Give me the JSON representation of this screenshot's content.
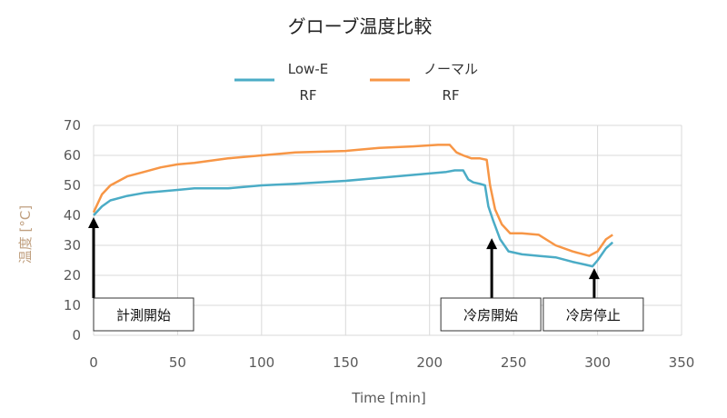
{
  "chart_data": {
    "type": "line",
    "title": "グローブ温度比較",
    "xlabel": "Time [min]",
    "ylabel": "温度 [°C]",
    "xlim": [
      0,
      350
    ],
    "ylim": [
      0,
      70
    ],
    "x_ticks": [
      0,
      50,
      100,
      150,
      200,
      250,
      300,
      350
    ],
    "y_ticks": [
      0,
      10,
      20,
      30,
      40,
      50,
      60,
      70
    ],
    "grid": true,
    "legend_position": "top",
    "series": [
      {
        "name_lines": [
          "Low-E",
          "RF"
        ],
        "color": "#4bacc6",
        "points": [
          [
            0,
            40
          ],
          [
            5,
            43
          ],
          [
            10,
            45
          ],
          [
            20,
            46.5
          ],
          [
            30,
            47.5
          ],
          [
            40,
            48
          ],
          [
            50,
            48.5
          ],
          [
            60,
            49
          ],
          [
            80,
            49
          ],
          [
            100,
            50
          ],
          [
            120,
            50.5
          ],
          [
            150,
            51.5
          ],
          [
            170,
            52.5
          ],
          [
            190,
            53.5
          ],
          [
            210,
            54.5
          ],
          [
            215,
            55
          ],
          [
            220,
            55
          ],
          [
            223,
            52
          ],
          [
            226,
            51
          ],
          [
            230,
            50.5
          ],
          [
            233,
            50
          ],
          [
            235,
            43
          ],
          [
            238,
            38
          ],
          [
            242,
            32
          ],
          [
            247,
            28
          ],
          [
            255,
            27
          ],
          [
            265,
            26.5
          ],
          [
            275,
            26
          ],
          [
            285,
            24.5
          ],
          [
            293,
            23.5
          ],
          [
            297,
            23
          ],
          [
            300,
            25
          ],
          [
            305,
            29
          ],
          [
            309,
            31
          ]
        ]
      },
      {
        "name_lines": [
          "ノーマル",
          "RF"
        ],
        "color": "#f79646",
        "points": [
          [
            0,
            41
          ],
          [
            5,
            47
          ],
          [
            10,
            50
          ],
          [
            20,
            53
          ],
          [
            30,
            54.5
          ],
          [
            40,
            56
          ],
          [
            50,
            57
          ],
          [
            60,
            57.5
          ],
          [
            80,
            59
          ],
          [
            100,
            60
          ],
          [
            120,
            61
          ],
          [
            150,
            61.5
          ],
          [
            170,
            62.5
          ],
          [
            190,
            63
          ],
          [
            205,
            63.5
          ],
          [
            212,
            63.5
          ],
          [
            216,
            61
          ],
          [
            220,
            60
          ],
          [
            225,
            59
          ],
          [
            230,
            59
          ],
          [
            234,
            58.5
          ],
          [
            236,
            50
          ],
          [
            239,
            42
          ],
          [
            243,
            37
          ],
          [
            248,
            34
          ],
          [
            255,
            34
          ],
          [
            265,
            33.5
          ],
          [
            275,
            30
          ],
          [
            285,
            28
          ],
          [
            295,
            26.5
          ],
          [
            300,
            28
          ],
          [
            305,
            32
          ],
          [
            309,
            33.5
          ]
        ]
      }
    ],
    "annotations": [
      {
        "label": "計測開始",
        "x": 0,
        "y": 40
      },
      {
        "label": "冷房開始",
        "x": 237,
        "y": 33
      },
      {
        "label": "冷房停止",
        "x": 298,
        "y": 23
      }
    ]
  }
}
